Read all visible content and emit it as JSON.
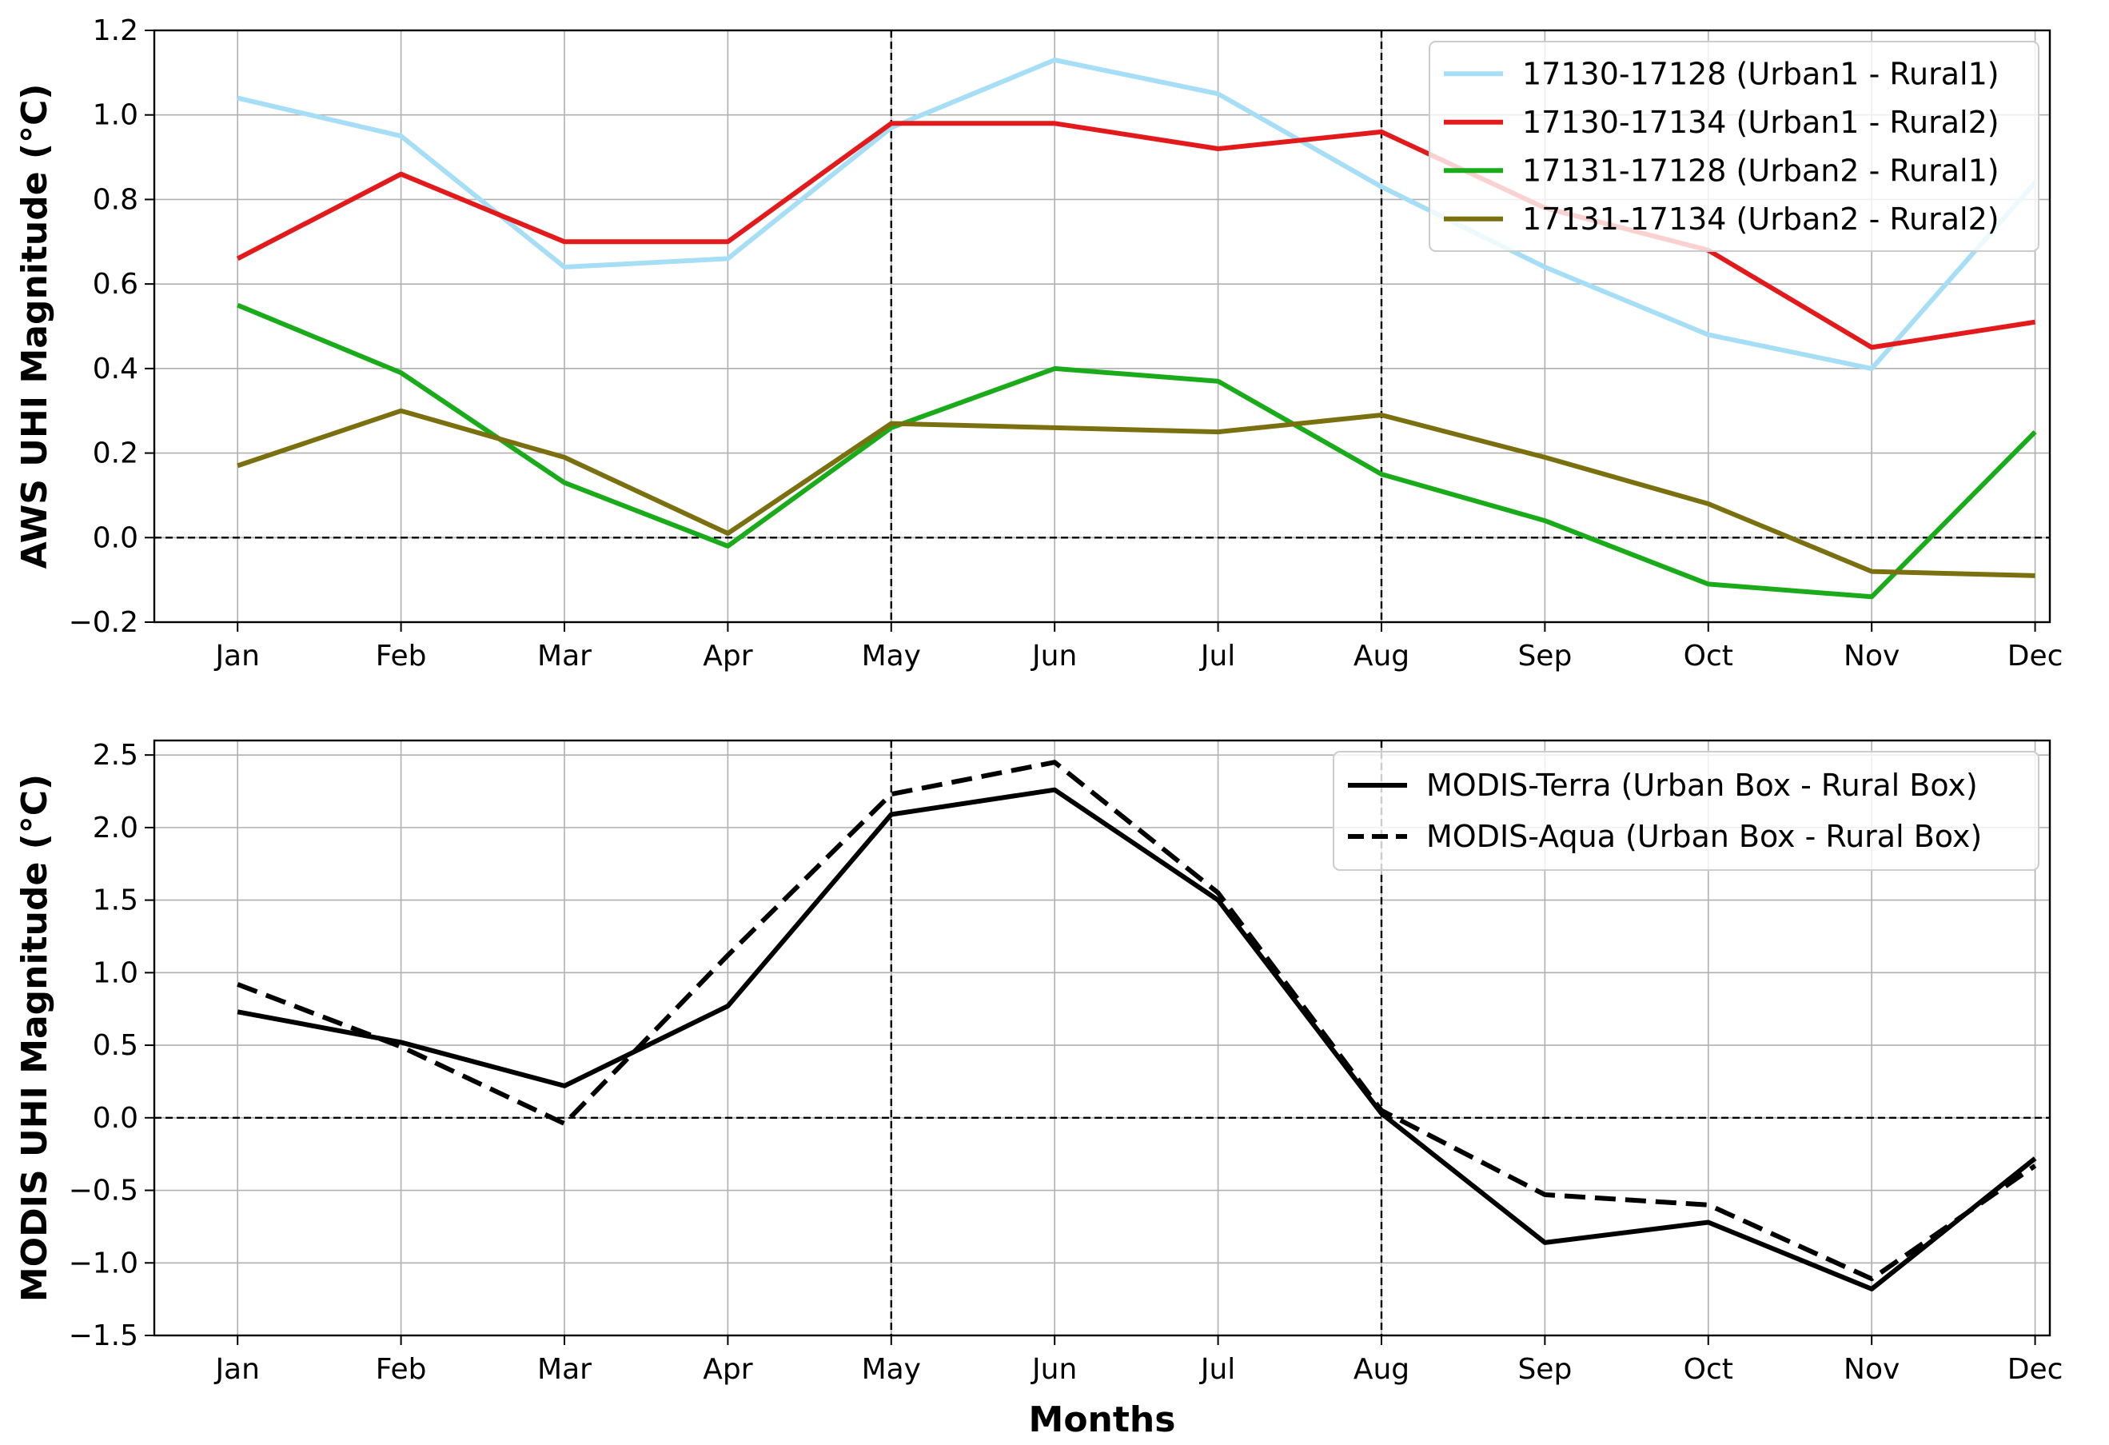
{
  "chart_data": [
    {
      "type": "line",
      "title": "",
      "xlabel": "",
      "ylabel": "AWS UHI Magnitude (°C)",
      "categories": [
        "Jan",
        "Feb",
        "Mar",
        "Apr",
        "May",
        "Jun",
        "Jul",
        "Aug",
        "Sep",
        "Oct",
        "Nov",
        "Dec"
      ],
      "ylim": [
        -0.2,
        1.2
      ],
      "yticks": [
        -0.2,
        0.0,
        0.2,
        0.4,
        0.6,
        0.8,
        1.0,
        1.2
      ],
      "ytick_labels": [
        "−0.2",
        "0.0",
        "0.2",
        "0.4",
        "0.6",
        "0.8",
        "1.0",
        "1.2"
      ],
      "grid": true,
      "legend_position": "top-right",
      "reference_lines": {
        "horizontal_zero": true,
        "vertical_months": [
          "May",
          "Aug"
        ]
      },
      "series": [
        {
          "name": "17130-17128 (Urban1 - Rural1)",
          "color": "#a6def5",
          "dash": "solid",
          "values": [
            1.04,
            0.95,
            0.64,
            0.66,
            0.97,
            1.13,
            1.05,
            0.83,
            0.64,
            0.48,
            0.4,
            0.84
          ]
        },
        {
          "name": "17130-17134 (Urban1 - Rural2)",
          "color": "#e31a1c",
          "dash": "solid",
          "values": [
            0.66,
            0.86,
            0.7,
            0.7,
            0.98,
            0.98,
            0.92,
            0.96,
            0.78,
            0.68,
            0.45,
            0.51
          ]
        },
        {
          "name": "17131-17128 (Urban2 - Rural1)",
          "color": "#1aab1a",
          "dash": "solid",
          "values": [
            0.55,
            0.39,
            0.13,
            -0.02,
            0.26,
            0.4,
            0.37,
            0.15,
            0.04,
            -0.11,
            -0.14,
            0.25
          ]
        },
        {
          "name": "17131-17134 (Urban2 - Rural2)",
          "color": "#7b7010",
          "dash": "solid",
          "values": [
            0.17,
            0.3,
            0.19,
            0.01,
            0.27,
            0.26,
            0.25,
            0.29,
            0.19,
            0.08,
            -0.08,
            -0.09
          ]
        }
      ]
    },
    {
      "type": "line",
      "title": "",
      "xlabel": "Months",
      "ylabel": "MODIS UHI Magnitude (°C)",
      "categories": [
        "Jan",
        "Feb",
        "Mar",
        "Apr",
        "May",
        "Jun",
        "Jul",
        "Aug",
        "Sep",
        "Oct",
        "Nov",
        "Dec"
      ],
      "ylim": [
        -1.5,
        2.6
      ],
      "yticks": [
        -1.5,
        -1.0,
        -0.5,
        0.0,
        0.5,
        1.0,
        1.5,
        2.0,
        2.5
      ],
      "ytick_labels": [
        "−1.5",
        "−1.0",
        "−0.5",
        "0.0",
        "0.5",
        "1.0",
        "1.5",
        "2.0",
        "2.5"
      ],
      "grid": true,
      "legend_position": "top-right",
      "reference_lines": {
        "horizontal_zero": true,
        "vertical_months": [
          "May",
          "Aug"
        ]
      },
      "series": [
        {
          "name": "MODIS-Terra (Urban Box - Rural Box)",
          "color": "#000000",
          "dash": "solid",
          "values": [
            0.73,
            0.52,
            0.22,
            0.77,
            2.09,
            2.26,
            1.5,
            0.03,
            -0.86,
            -0.72,
            -1.18,
            -0.28
          ]
        },
        {
          "name": "MODIS-Aqua (Urban Box - Rural Box)",
          "color": "#000000",
          "dash": "dashed",
          "values": [
            0.92,
            0.49,
            -0.04,
            1.12,
            2.23,
            2.45,
            1.55,
            0.05,
            -0.53,
            -0.6,
            -1.11,
            -0.33
          ]
        }
      ]
    }
  ]
}
